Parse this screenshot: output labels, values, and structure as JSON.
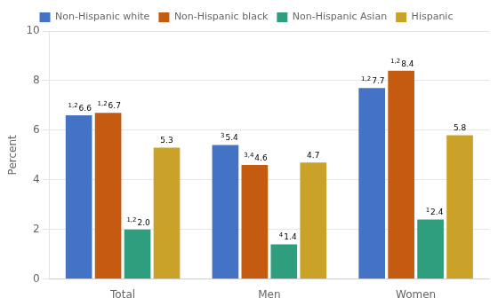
{
  "chart_data": {
    "type": "bar",
    "categories": [
      "Total",
      "Men",
      "Women"
    ],
    "series": [
      {
        "name": "Non-Hispanic white",
        "color": "#4472C4",
        "values": [
          6.6,
          5.4,
          7.7
        ],
        "value_labels": [
          "6.6",
          "5.4",
          "7.7"
        ],
        "superscripts": [
          "1,2",
          "3",
          "1,2"
        ]
      },
      {
        "name": "Non-Hispanic black",
        "color": "#C55A11",
        "values": [
          6.7,
          4.6,
          8.4
        ],
        "value_labels": [
          "6.7",
          "4.6",
          "8.4"
        ],
        "superscripts": [
          "1,2",
          "3,4",
          "1,2"
        ]
      },
      {
        "name": "Non-Hispanic Asian",
        "color": "#2E9E7E",
        "values": [
          2.0,
          1.4,
          2.4
        ],
        "value_labels": [
          "2.0",
          "1.4",
          "2.4"
        ],
        "superscripts": [
          "1,2",
          "4",
          "1"
        ]
      },
      {
        "name": "Hispanic",
        "color": "#C9A227",
        "values": [
          5.3,
          4.7,
          5.8
        ],
        "value_labels": [
          "5.3",
          "4.7",
          "5.8"
        ]
      }
    ],
    "ylabel": "Percent",
    "ylim": [
      0,
      10
    ],
    "yticks": [
      0,
      2,
      4,
      6,
      8,
      10
    ],
    "grid": true,
    "legend": "top",
    "data_labels": true
  }
}
